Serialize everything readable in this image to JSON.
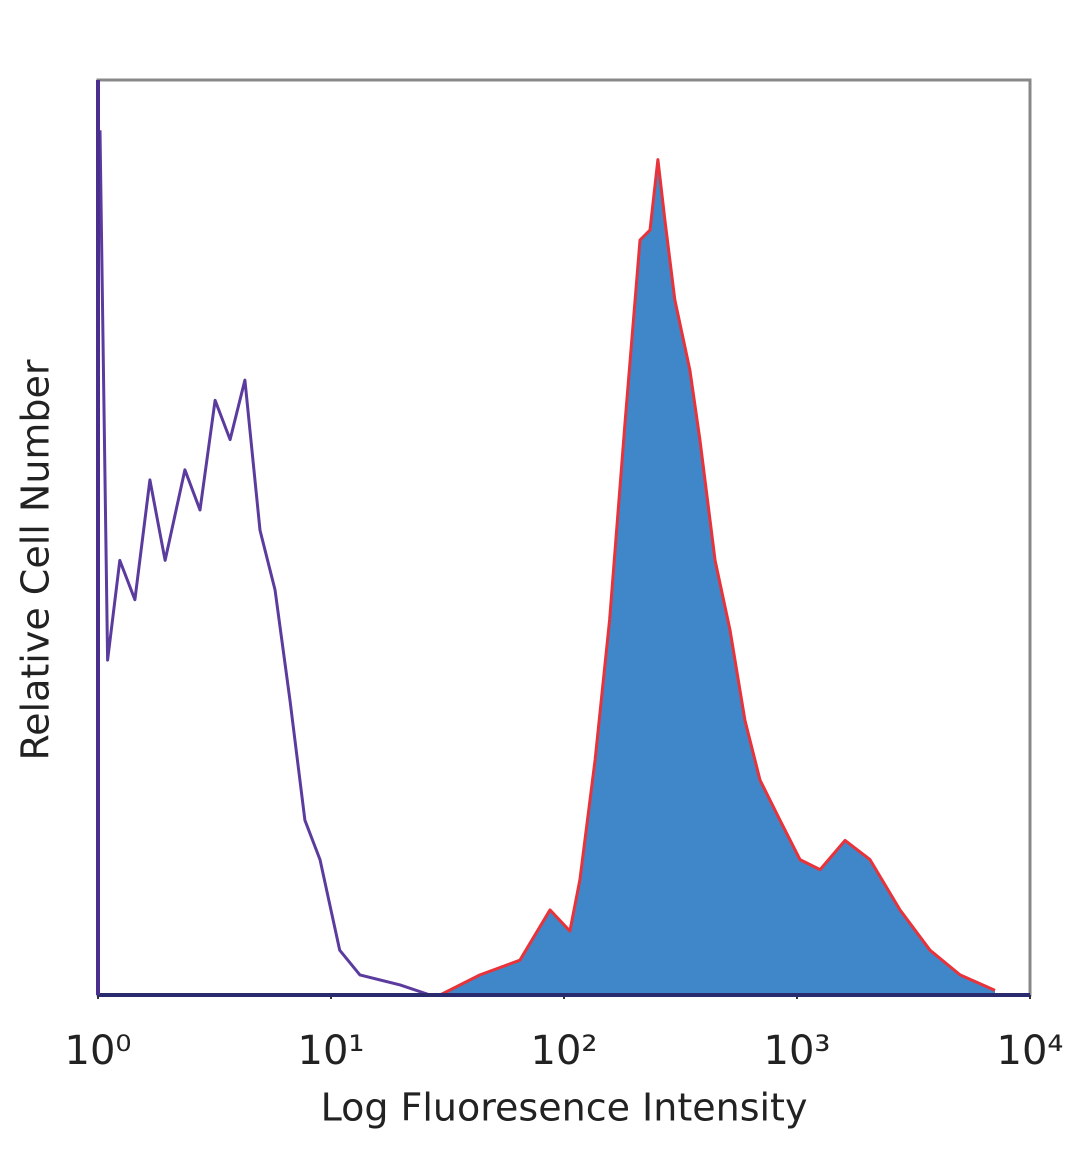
{
  "chart_data": {
    "type": "histogram-overlay",
    "x_label": "Log Fluoresence Intensity",
    "y_label": "Relative Cell Number",
    "log_x": true,
    "xlim": [
      1,
      10000
    ],
    "ylim": [
      0,
      100
    ],
    "xticks": [
      {
        "value": 1,
        "label": "10⁰"
      },
      {
        "value": 10,
        "label": "10¹"
      },
      {
        "value": 100,
        "label": "10²"
      },
      {
        "value": 1000,
        "label": "10³"
      },
      {
        "value": 10000,
        "label": "10⁴"
      }
    ],
    "grid": false,
    "series": [
      {
        "color": "#3f87c8",
        "edge_color": "#e8333a",
        "filled": true,
        "x": [
          29.4,
          43.6,
          64.7,
          87.1,
          106,
          117,
          136,
          157,
          183,
          212,
          234,
          253,
          271,
          299,
          347,
          383,
          445,
          516,
          598,
          694,
          845,
          1030,
          1256,
          1608,
          2057,
          2767,
          3722,
          5012,
          7079
        ],
        "values": [
          0,
          2.2,
          3.8,
          9.3,
          7,
          12.6,
          25.7,
          41,
          62.8,
          82.5,
          83.6,
          91.3,
          84.7,
          76,
          68.3,
          60.7,
          47.5,
          39.9,
          30,
          23.5,
          19.1,
          14.8,
          13.7,
          16.9,
          14.8,
          9.3,
          4.9,
          2.2,
          0.5
        ]
      },
      {
        "color": "#5b3c9e",
        "filled": false,
        "x": [
          1.02,
          1.1,
          1.24,
          1.44,
          1.67,
          1.94,
          2.36,
          2.74,
          3.18,
          3.69,
          4.27,
          4.96,
          5.75,
          6.67,
          7.73,
          8.97,
          10.9,
          13.3,
          19.8,
          26.6
        ],
        "values": [
          94.5,
          36.6,
          47.5,
          43.2,
          56.3,
          47.5,
          57.4,
          53,
          65,
          60.7,
          67.2,
          50.8,
          44.3,
          32.2,
          19.1,
          14.8,
          4.9,
          2.2,
          1.1,
          0
        ]
      }
    ]
  }
}
